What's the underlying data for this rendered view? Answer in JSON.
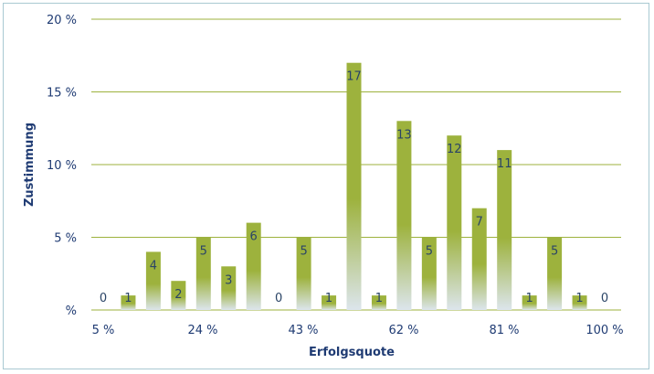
{
  "chart_data": {
    "type": "bar",
    "title": "",
    "xlabel": "Erfolgsquote",
    "ylabel": "Zustimmung",
    "ylim": [
      0,
      20
    ],
    "yticks": [
      {
        "value": 0,
        "label": "%"
      },
      {
        "value": 5,
        "label": "5 %"
      },
      {
        "value": 10,
        "label": "10 %"
      },
      {
        "value": 15,
        "label": "15 %"
      },
      {
        "value": 20,
        "label": "20 %"
      }
    ],
    "xtick_labels": [
      "5 %",
      "24 %",
      "43 %",
      "62 %",
      "81 %",
      "100 %"
    ],
    "values": [
      0,
      1,
      4,
      2,
      5,
      3,
      6,
      0,
      5,
      1,
      17,
      1,
      13,
      5,
      12,
      7,
      11,
      1,
      5,
      1,
      0
    ],
    "grid": true,
    "colors": {
      "bar": "#9db23d",
      "bar_fade": "#dce5ec",
      "grid": "#9db23d",
      "text": "#1f3b73",
      "frame": "#a9c9d2"
    }
  }
}
